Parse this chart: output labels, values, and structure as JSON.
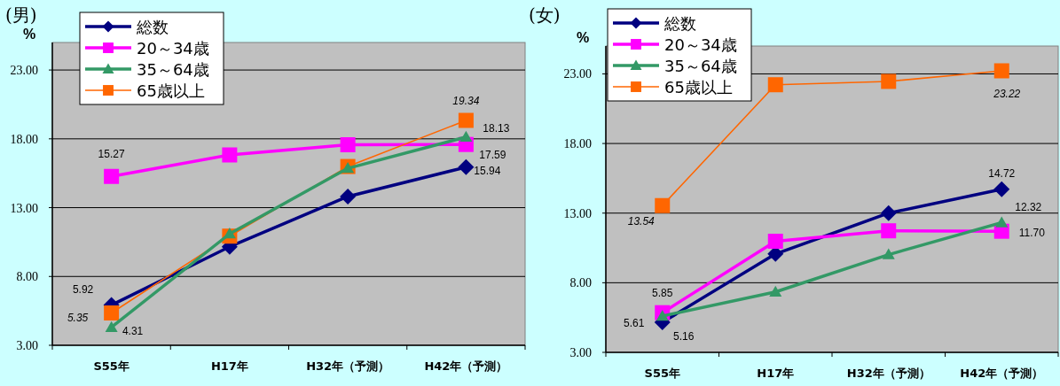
{
  "chart_data": [
    {
      "type": "line",
      "title": "(男)",
      "ylabel": "%",
      "categories": [
        "S55年",
        "H17年",
        "H32年（予測）",
        "H42年（予測）"
      ],
      "ylim": [
        3,
        25
      ],
      "yticks": [
        {
          "value": 3,
          "label": "3.00"
        },
        {
          "value": 8,
          "label": "8.00"
        },
        {
          "value": 13,
          "label": "13.00"
        },
        {
          "value": 18,
          "label": "18.00"
        },
        {
          "value": 23,
          "label": "23.00"
        }
      ],
      "grid": "y",
      "legend": "top left",
      "series": [
        {
          "name": "総数",
          "color": "#000080",
          "marker": "diamond",
          "values": [
            5.92,
            10.16,
            13.81,
            15.94
          ],
          "value_labels": [
            "5.92",
            null,
            null,
            "15.94"
          ]
        },
        {
          "name": "20～34歳",
          "color": "#ff00ff",
          "marker": "square",
          "values": [
            15.27,
            16.83,
            17.57,
            17.59
          ],
          "value_labels": [
            "15.27",
            null,
            null,
            "17.59"
          ]
        },
        {
          "name": "35～64歳",
          "color": "#339966",
          "marker": "triangle",
          "values": [
            4.31,
            11.1,
            15.86,
            18.13
          ],
          "value_labels": [
            "4.31",
            null,
            null,
            "18.13"
          ]
        },
        {
          "name": "65歳以上",
          "color": "#ff6600",
          "marker": "square",
          "values": [
            5.35,
            10.93,
            15.99,
            19.34
          ],
          "value_labels": [
            "5.35",
            null,
            null,
            "19.34"
          ]
        }
      ]
    },
    {
      "type": "line",
      "title": "(女)",
      "ylabel": "%",
      "categories": [
        "S55年",
        "H17年",
        "H32年（予測）",
        "H42年（予測）"
      ],
      "ylim": [
        3,
        25
      ],
      "yticks": [
        {
          "value": 3,
          "label": "3.00"
        },
        {
          "value": 8,
          "label": "8.00"
        },
        {
          "value": 13,
          "label": "13.00"
        },
        {
          "value": 18,
          "label": "18.00"
        },
        {
          "value": 23,
          "label": "23.00"
        }
      ],
      "grid": "y",
      "legend": "top left",
      "series": [
        {
          "name": "総数",
          "color": "#000080",
          "marker": "diamond",
          "values": [
            5.16,
            10.07,
            13.0,
            14.72
          ],
          "value_labels": [
            "5.16",
            null,
            null,
            "14.72"
          ]
        },
        {
          "name": "20～34歳",
          "color": "#ff00ff",
          "marker": "square",
          "values": [
            5.85,
            10.98,
            11.73,
            11.7
          ],
          "value_labels": [
            "5.85",
            null,
            null,
            "11.70"
          ]
        },
        {
          "name": "35～64歳",
          "color": "#339966",
          "marker": "triangle",
          "values": [
            5.61,
            7.34,
            10.02,
            12.32
          ],
          "value_labels": [
            "5.61",
            null,
            null,
            "12.32"
          ]
        },
        {
          "name": "65歳以上",
          "color": "#ff6600",
          "marker": "square",
          "values": [
            13.54,
            22.22,
            22.46,
            23.22
          ],
          "value_labels": [
            "13.54",
            null,
            null,
            "23.22"
          ]
        }
      ]
    }
  ]
}
